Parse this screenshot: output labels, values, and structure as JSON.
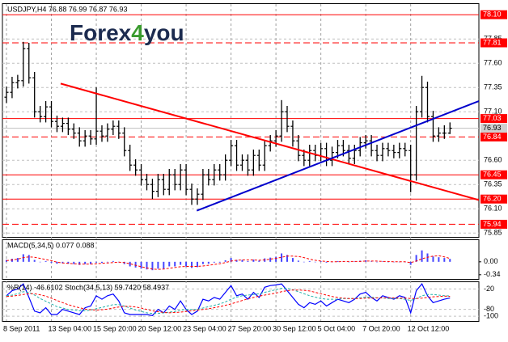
{
  "logo": [
    "Forex",
    "4",
    "you"
  ],
  "chart_data": [
    {
      "type": "ohlc",
      "title": "USDJPY,H4 76.88 76.99 76.87 76.93",
      "color": "#000000",
      "grid": true,
      "categories": [
        "8 Sep 2011",
        null,
        null,
        null,
        null,
        null,
        null,
        null,
        "13 Sep 04:00",
        null,
        null,
        null,
        null,
        null,
        null,
        null,
        "15 Sep 20:00",
        null,
        null,
        null,
        null,
        null,
        null,
        null,
        "20 Sep 12:00",
        null,
        null,
        null,
        null,
        null,
        null,
        null,
        "23 Sep 04:00",
        null,
        null,
        null,
        null,
        null,
        null,
        null,
        "27 Sep 20:00",
        null,
        null,
        null,
        null,
        null,
        null,
        null,
        "30 Sep 12:00",
        null,
        null,
        null,
        null,
        null,
        null,
        null,
        "5 Oct 04:00",
        null,
        null,
        null,
        null,
        null,
        null,
        null,
        "7 Oct 20:00",
        null,
        null,
        null,
        null,
        null,
        null,
        null,
        "12 Oct 12:00",
        null,
        null,
        null,
        null,
        null,
        null,
        null
      ],
      "ohlc": [
        [
          77.25,
          77.36,
          77.19,
          77.3
        ],
        [
          77.3,
          77.46,
          77.24,
          77.4
        ],
        [
          77.4,
          77.48,
          77.34,
          77.42
        ],
        [
          77.42,
          77.82,
          77.36,
          77.75
        ],
        [
          77.75,
          77.81,
          77.39,
          77.45
        ],
        [
          77.45,
          77.51,
          77.04,
          77.1
        ],
        [
          77.1,
          77.16,
          76.99,
          77.05
        ],
        [
          77.05,
          77.21,
          76.99,
          77.15
        ],
        [
          77.15,
          77.21,
          76.94,
          77.0
        ],
        [
          77.0,
          77.06,
          76.89,
          76.95
        ],
        [
          76.95,
          77.04,
          76.89,
          76.98
        ],
        [
          76.98,
          77.04,
          76.86,
          76.92
        ],
        [
          76.92,
          76.98,
          76.82,
          76.88
        ],
        [
          76.88,
          76.94,
          76.74,
          76.8
        ],
        [
          76.8,
          76.91,
          76.74,
          76.85
        ],
        [
          76.85,
          76.91,
          76.76,
          76.82
        ],
        [
          76.82,
          77.35,
          76.76,
          76.9
        ],
        [
          76.9,
          76.96,
          76.79,
          76.85
        ],
        [
          76.85,
          76.98,
          76.79,
          76.92
        ],
        [
          76.92,
          77.01,
          76.86,
          76.95
        ],
        [
          76.95,
          77.01,
          76.82,
          76.88
        ],
        [
          76.88,
          76.94,
          76.64,
          76.7
        ],
        [
          76.7,
          76.76,
          76.49,
          76.55
        ],
        [
          76.55,
          76.61,
          76.44,
          76.5
        ],
        [
          76.5,
          76.56,
          76.34,
          76.4
        ],
        [
          76.4,
          76.46,
          76.29,
          76.35
        ],
        [
          76.35,
          76.41,
          76.2,
          76.28
        ],
        [
          76.28,
          76.46,
          76.22,
          76.4
        ],
        [
          76.4,
          76.46,
          76.24,
          76.3
        ],
        [
          76.3,
          76.51,
          76.24,
          76.45
        ],
        [
          76.45,
          76.51,
          76.29,
          76.35
        ],
        [
          76.35,
          76.56,
          76.29,
          76.5
        ],
        [
          76.5,
          76.56,
          76.24,
          76.3
        ],
        [
          76.3,
          76.36,
          76.14,
          76.2
        ],
        [
          76.2,
          76.31,
          76.14,
          76.25
        ],
        [
          76.25,
          76.51,
          76.19,
          76.45
        ],
        [
          76.45,
          76.51,
          76.34,
          76.4
        ],
        [
          76.4,
          76.56,
          76.34,
          76.5
        ],
        [
          76.5,
          76.56,
          76.39,
          76.45
        ],
        [
          76.45,
          76.66,
          76.39,
          76.6
        ],
        [
          76.6,
          76.81,
          76.54,
          76.75
        ],
        [
          76.75,
          76.81,
          76.49,
          76.55
        ],
        [
          76.55,
          76.66,
          76.49,
          76.6
        ],
        [
          76.6,
          76.66,
          76.44,
          76.5
        ],
        [
          76.5,
          76.71,
          76.44,
          76.65
        ],
        [
          76.65,
          76.71,
          76.49,
          76.55
        ],
        [
          76.55,
          76.81,
          76.49,
          76.75
        ],
        [
          76.75,
          76.86,
          76.69,
          76.8
        ],
        [
          76.8,
          76.91,
          76.74,
          76.85
        ],
        [
          76.85,
          77.22,
          76.79,
          77.1
        ],
        [
          77.1,
          77.16,
          76.89,
          76.95
        ],
        [
          76.95,
          77.01,
          76.74,
          76.8
        ],
        [
          76.8,
          76.86,
          76.59,
          76.65
        ],
        [
          76.65,
          76.71,
          76.54,
          76.6
        ],
        [
          76.6,
          76.76,
          76.54,
          76.7
        ],
        [
          76.7,
          76.76,
          76.59,
          76.65
        ],
        [
          76.65,
          76.78,
          76.59,
          76.72
        ],
        [
          76.72,
          76.78,
          76.54,
          76.6
        ],
        [
          76.6,
          76.74,
          76.54,
          76.68
        ],
        [
          76.68,
          76.81,
          76.62,
          76.75
        ],
        [
          76.75,
          76.81,
          76.64,
          76.7
        ],
        [
          76.7,
          76.76,
          76.56,
          76.62
        ],
        [
          76.62,
          76.76,
          76.56,
          76.7
        ],
        [
          76.7,
          76.84,
          76.64,
          76.78
        ],
        [
          76.78,
          76.86,
          76.72,
          76.8
        ],
        [
          76.8,
          76.86,
          76.64,
          76.7
        ],
        [
          76.7,
          76.76,
          76.59,
          76.65
        ],
        [
          76.65,
          76.78,
          76.59,
          76.72
        ],
        [
          76.72,
          76.78,
          76.64,
          76.7
        ],
        [
          76.7,
          76.76,
          76.62,
          76.68
        ],
        [
          76.68,
          76.78,
          76.62,
          76.72
        ],
        [
          76.72,
          76.78,
          76.64,
          76.7
        ],
        [
          76.7,
          76.76,
          76.27,
          76.45
        ],
        [
          76.45,
          77.16,
          76.39,
          77.1
        ],
        [
          77.1,
          77.47,
          77.04,
          77.35
        ],
        [
          77.35,
          77.41,
          76.99,
          77.05
        ],
        [
          77.05,
          77.11,
          76.79,
          76.85
        ],
        [
          76.85,
          76.94,
          76.79,
          76.88
        ],
        [
          76.88,
          76.96,
          76.82,
          76.88
        ],
        [
          76.88,
          76.99,
          76.87,
          76.93
        ]
      ],
      "ylim": [
        75.81,
        78.21
      ],
      "yticks": [
        77.85,
        {
          "value": 77.6,
          "label": "77.60"
        },
        77.35,
        {
          "value": 77.1,
          "label": "77.10"
        },
        {
          "value": 76.6,
          "label": "76.60"
        },
        76.35,
        {
          "value": 76.1,
          "label": "76.10"
        },
        75.85
      ],
      "levels": [
        {
          "value": 78.1,
          "label": "78.10",
          "dash": false,
          "color": "#ff0000"
        },
        {
          "value": 77.81,
          "dash": true,
          "color": "#ff0000"
        },
        {
          "value": 77.03,
          "dash": false,
          "color": "#ff0000"
        },
        {
          "value": 76.84,
          "dash": true,
          "color": "#ff0000"
        },
        {
          "value": 76.45,
          "dash": false,
          "color": "#ff0000"
        },
        {
          "value": 76.2,
          "label": "76.20",
          "dash": false,
          "color": "#ff0000"
        },
        {
          "value": 75.94,
          "dash": true,
          "color": "#ff0000"
        }
      ],
      "trendlines": [
        {
          "x": [
            9.65,
            84.15
          ],
          "y": [
            77.39,
            76.19
          ],
          "color": "#ff0000"
        },
        {
          "x": [
            33.9,
            84.15
          ],
          "y": [
            76.08,
            77.21
          ],
          "color": "#0000cc"
        }
      ]
    },
    {
      "type": "bar",
      "title": "MACD(5,34,5) 0.077 0.088",
      "grid": false,
      "ylim": [
        -0.45,
        0.57
      ],
      "yticks": [
        {
          "value": 0,
          "label": "0.00"
        },
        -0.34
      ],
      "series": [
        {
          "type": "bar",
          "color": "#4646ff",
          "values": [
            0.05,
            0.08,
            0.1,
            0.2,
            0.18,
            0.05,
            0.0,
            0.02,
            -0.03,
            -0.05,
            -0.04,
            -0.05,
            -0.06,
            -0.08,
            -0.06,
            -0.06,
            -0.02,
            -0.03,
            0.0,
            0.02,
            0.0,
            -0.06,
            -0.12,
            -0.15,
            -0.18,
            -0.2,
            -0.22,
            -0.18,
            -0.18,
            -0.12,
            -0.12,
            -0.08,
            -0.12,
            -0.16,
            -0.14,
            -0.06,
            -0.05,
            -0.02,
            -0.02,
            0.04,
            0.1,
            0.05,
            0.05,
            0.02,
            0.06,
            0.03,
            0.09,
            0.11,
            0.13,
            0.22,
            0.18,
            0.1,
            0.03,
            0.0,
            0.02,
            0.0,
            0.02,
            -0.02,
            0.0,
            0.02,
            0.01,
            -0.01,
            0.01,
            0.03,
            0.04,
            0.01,
            -0.01,
            0.01,
            0.0,
            -0.01,
            0.0,
            0.0,
            -0.08,
            0.18,
            0.3,
            0.22,
            0.14,
            0.12,
            0.1,
            0.077
          ]
        },
        {
          "type": "line",
          "color": "#ff0000",
          "dash": true,
          "values": [
            0.03,
            0.05,
            0.07,
            0.11,
            0.13,
            0.12,
            0.09,
            0.06,
            0.03,
            -0.01,
            -0.03,
            -0.04,
            -0.05,
            -0.06,
            -0.06,
            -0.06,
            -0.05,
            -0.04,
            -0.03,
            -0.02,
            -0.01,
            -0.02,
            -0.05,
            -0.09,
            -0.13,
            -0.16,
            -0.19,
            -0.2,
            -0.19,
            -0.17,
            -0.15,
            -0.13,
            -0.12,
            -0.12,
            -0.12,
            -0.11,
            -0.09,
            -0.07,
            -0.05,
            -0.02,
            0.02,
            0.04,
            0.05,
            0.05,
            0.05,
            0.04,
            0.05,
            0.07,
            0.09,
            0.12,
            0.15,
            0.15,
            0.14,
            0.11,
            0.07,
            0.04,
            0.02,
            0.01,
            0.0,
            0.0,
            0.01,
            0.01,
            0.01,
            0.01,
            0.02,
            0.02,
            0.02,
            0.01,
            0.01,
            0.0,
            0.0,
            0.0,
            -0.02,
            0.02,
            0.08,
            0.12,
            0.15,
            0.16,
            0.13,
            0.088
          ]
        }
      ]
    },
    {
      "type": "line",
      "title": "%R(14) -46.6102 Stoch(34,5,13) 59.7420 58.4937",
      "grid": true,
      "ylim": [
        -114,
        0
      ],
      "yticks": [
        -20,
        -80,
        -100
      ],
      "y2lim": [
        -14,
        100
      ],
      "series": [
        {
          "type": "line",
          "color": "#0000ff",
          "values": [
            -40,
            -25,
            -20,
            -5,
            -45,
            -85,
            -90,
            -75,
            -95,
            -95,
            -80,
            -85,
            -90,
            -95,
            -75,
            -70,
            -40,
            -50,
            -40,
            -35,
            -55,
            -90,
            -95,
            -95,
            -95,
            -95,
            -98,
            -80,
            -90,
            -70,
            -80,
            -55,
            -80,
            -95,
            -85,
            -50,
            -55,
            -45,
            -50,
            -30,
            -10,
            -40,
            -35,
            -50,
            -30,
            -45,
            -15,
            -10,
            -8,
            -5,
            -25,
            -45,
            -65,
            -75,
            -60,
            -65,
            -55,
            -70,
            -60,
            -50,
            -55,
            -60,
            -50,
            -35,
            -30,
            -45,
            -55,
            -40,
            -45,
            -50,
            -40,
            -45,
            -90,
            -25,
            -5,
            -40,
            -60,
            -55,
            -50,
            -46.6102
          ]
        },
        {
          "type": "line",
          "axis": "y2",
          "color": "#20b2aa",
          "dash": true,
          "values": [
            60,
            62,
            66,
            72,
            70,
            62,
            52,
            44,
            36,
            28,
            24,
            20,
            18,
            16,
            16,
            18,
            22,
            26,
            30,
            34,
            34,
            30,
            24,
            18,
            14,
            10,
            8,
            8,
            10,
            12,
            14,
            18,
            20,
            20,
            20,
            24,
            28,
            32,
            36,
            42,
            50,
            56,
            60,
            62,
            64,
            66,
            70,
            74,
            78,
            82,
            82,
            78,
            72,
            66,
            60,
            56,
            52,
            50,
            50,
            50,
            52,
            52,
            52,
            54,
            56,
            56,
            54,
            54,
            52,
            52,
            52,
            50,
            46,
            52,
            60,
            64,
            64,
            62,
            60,
            59.742
          ]
        },
        {
          "type": "line",
          "axis": "y2",
          "color": "#ff0000",
          "dash": true,
          "values": [
            58,
            59,
            61,
            64,
            66,
            66,
            63,
            59,
            53,
            46,
            40,
            34,
            29,
            25,
            21,
            19,
            18,
            19,
            21,
            24,
            27,
            29,
            29,
            27,
            24,
            20,
            16,
            13,
            11,
            10,
            11,
            12,
            14,
            16,
            18,
            20,
            22,
            25,
            28,
            32,
            36,
            41,
            46,
            51,
            55,
            59,
            62,
            65,
            68,
            72,
            75,
            77,
            77,
            76,
            74,
            70,
            66,
            62,
            58,
            55,
            53,
            52,
            52,
            52,
            53,
            53,
            54,
            54,
            54,
            54,
            53,
            53,
            52,
            52,
            53,
            55,
            57,
            58,
            59,
            58.4937
          ]
        }
      ]
    }
  ]
}
